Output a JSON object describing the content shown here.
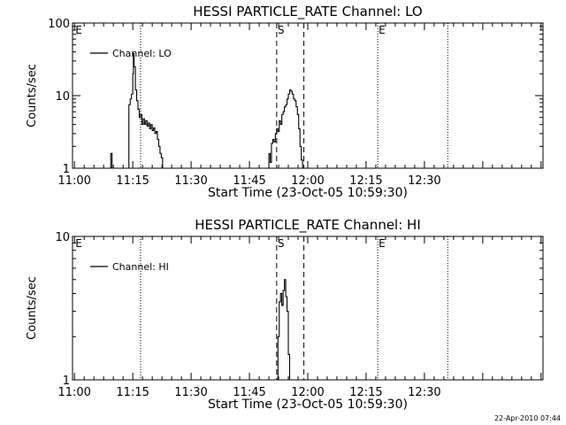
{
  "footer": {
    "timestamp": "22-Apr-2010 07:44"
  },
  "chart_data": [
    {
      "type": "line",
      "title": "HESSI PARTICLE_RATE Channel: LO",
      "xlabel": "Start Time (23-Oct-05 10:59:30)",
      "ylabel": "Counts/sec",
      "y_scale": "log",
      "ylim": [
        1,
        100
      ],
      "y_ticks": [
        1,
        10,
        100
      ],
      "y_tick_labels": [
        "1",
        "10",
        "100"
      ],
      "xlim": [
        "10:59:30",
        "13:00:30"
      ],
      "x_ticks": [
        "11:00",
        "11:15",
        "11:30",
        "11:45",
        "12:00",
        "12:15",
        "12:30"
      ],
      "legend": {
        "position": "top-left",
        "entries": [
          "Channel: LO"
        ]
      },
      "markers": [
        {
          "label": "E",
          "time": "11:00"
        },
        {
          "label": "S",
          "time": "11:52"
        },
        {
          "label": "E",
          "time": "12:18"
        }
      ],
      "vlines_dotted": [
        "11:17",
        "12:18",
        "12:36"
      ],
      "vlines_dashed": [
        "11:52",
        "11:59"
      ],
      "grid": false,
      "series": [
        {
          "name": "Channel: LO",
          "segments": [
            [
              [
                "11:09:00",
                1.0
              ],
              [
                "11:09:20",
                1.6
              ],
              [
                "11:09:40",
                1.0
              ]
            ],
            [
              [
                "11:13:40",
                1.0
              ],
              [
                "11:14:00",
                7.5
              ],
              [
                "11:14:20",
                9.0
              ],
              [
                "11:14:40",
                10.5
              ],
              [
                "11:15:00",
                20.0
              ],
              [
                "11:15:10",
                38.0
              ],
              [
                "11:15:20",
                25.0
              ],
              [
                "11:15:40",
                12.0
              ],
              [
                "11:16:00",
                8.5
              ],
              [
                "11:16:20",
                6.5
              ],
              [
                "11:16:40",
                5.0
              ],
              [
                "11:17:00",
                5.5
              ],
              [
                "11:17:20",
                4.0
              ],
              [
                "11:17:40",
                4.8
              ],
              [
                "11:18:00",
                4.0
              ],
              [
                "11:18:20",
                4.5
              ],
              [
                "11:18:40",
                3.8
              ],
              [
                "11:19:00",
                4.2
              ],
              [
                "11:19:20",
                3.5
              ],
              [
                "11:19:40",
                4.0
              ],
              [
                "11:20:00",
                3.3
              ],
              [
                "11:20:20",
                3.6
              ],
              [
                "11:20:40",
                3.0
              ],
              [
                "11:21:00",
                3.2
              ],
              [
                "11:21:20",
                2.5
              ],
              [
                "11:21:40",
                2.0
              ],
              [
                "11:22:00",
                1.6
              ],
              [
                "11:22:20",
                1.4
              ],
              [
                "11:22:40",
                1.0
              ]
            ],
            [
              [
                "11:49:40",
                1.0
              ],
              [
                "11:50:00",
                1.6
              ],
              [
                "11:50:20",
                1.2
              ],
              [
                "11:50:40",
                2.2
              ],
              [
                "11:51:00",
                2.5
              ],
              [
                "11:51:20",
                2.3
              ],
              [
                "11:51:40",
                3.0
              ],
              [
                "11:52:00",
                3.5
              ],
              [
                "11:52:20",
                3.2
              ],
              [
                "11:52:40",
                4.5
              ],
              [
                "11:53:00",
                4.0
              ],
              [
                "11:53:20",
                5.5
              ],
              [
                "11:53:40",
                6.0
              ],
              [
                "11:54:00",
                7.0
              ],
              [
                "11:54:20",
                7.5
              ],
              [
                "11:54:40",
                9.0
              ],
              [
                "11:55:00",
                10.5
              ],
              [
                "11:55:20",
                12.0
              ],
              [
                "11:55:40",
                11.5
              ],
              [
                "11:56:00",
                10.5
              ],
              [
                "11:56:20",
                9.0
              ],
              [
                "11:56:40",
                8.5
              ],
              [
                "11:57:00",
                7.0
              ],
              [
                "11:57:20",
                5.5
              ],
              [
                "11:57:40",
                3.5
              ],
              [
                "11:58:00",
                2.0
              ],
              [
                "11:58:20",
                1.3
              ],
              [
                "11:58:40",
                1.0
              ]
            ]
          ]
        }
      ]
    },
    {
      "type": "line",
      "title": "HESSI PARTICLE_RATE Channel: HI",
      "xlabel": "Start Time (23-Oct-05 10:59:30)",
      "ylabel": "Counts/sec",
      "y_scale": "log",
      "ylim": [
        1,
        10
      ],
      "y_ticks": [
        1,
        10
      ],
      "y_tick_labels": [
        "1",
        "10"
      ],
      "xlim": [
        "10:59:30",
        "13:00:30"
      ],
      "x_ticks": [
        "11:00",
        "11:15",
        "11:30",
        "11:45",
        "12:00",
        "12:15",
        "12:30"
      ],
      "legend": {
        "position": "top-left",
        "entries": [
          "Channel: HI"
        ]
      },
      "markers": [
        {
          "label": "E",
          "time": "11:00"
        },
        {
          "label": "S",
          "time": "11:52"
        },
        {
          "label": "E",
          "time": "12:18"
        }
      ],
      "vlines_dotted": [
        "11:17",
        "12:18",
        "12:36"
      ],
      "vlines_dashed": [
        "11:52",
        "11:59"
      ],
      "grid": false,
      "series": [
        {
          "name": "Channel: HI",
          "segments": [
            [
              [
                "11:52:00",
                1.0
              ],
              [
                "11:52:20",
                2.0
              ],
              [
                "11:52:40",
                3.5
              ],
              [
                "11:53:00",
                4.0
              ],
              [
                "11:53:20",
                3.3
              ],
              [
                "11:53:40",
                4.2
              ],
              [
                "11:54:00",
                5.0
              ],
              [
                "11:54:20",
                3.8
              ],
              [
                "11:54:40",
                3.0
              ],
              [
                "11:55:00",
                1.5
              ],
              [
                "11:55:20",
                1.0
              ]
            ]
          ]
        }
      ]
    }
  ]
}
